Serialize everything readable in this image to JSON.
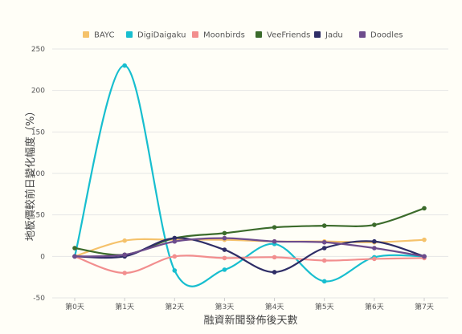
{
  "chart_data": {
    "type": "line",
    "xlabel": "融資新聞發佈後天數",
    "ylabel": "地板價較前日變化幅度（%）",
    "categories": [
      "第0天",
      "第1天",
      "第2天",
      "第3天",
      "第4天",
      "第5天",
      "第6天",
      "第7天"
    ],
    "ylim": [
      -50,
      250
    ],
    "yticks": [
      -50,
      0,
      50,
      100,
      150,
      200,
      250
    ],
    "grid": true,
    "legend_position": "top",
    "series": [
      {
        "name": "BAYC",
        "color": "#f5c26b",
        "values": [
          0,
          19,
          20,
          20,
          18,
          18,
          17,
          20
        ]
      },
      {
        "name": "DigiDaigaku",
        "color": "#17becf",
        "values": [
          0,
          230,
          -17,
          -16,
          15,
          -30,
          -1,
          0
        ]
      },
      {
        "name": "Moonbirds",
        "color": "#f28e8e",
        "values": [
          0,
          -20,
          0,
          -2,
          -1,
          -5,
          -3,
          -2
        ]
      },
      {
        "name": "VeeFriends",
        "color": "#3b6b2b",
        "values": [
          10,
          2,
          22,
          28,
          35,
          37,
          38,
          58
        ]
      },
      {
        "name": "Jadu",
        "color": "#2e2d66",
        "values": [
          0,
          0,
          22,
          8,
          -19,
          10,
          18,
          0
        ]
      },
      {
        "name": "Doodles",
        "color": "#6d4c8c",
        "values": [
          0,
          2,
          18,
          22,
          18,
          17,
          10,
          0
        ]
      }
    ]
  }
}
